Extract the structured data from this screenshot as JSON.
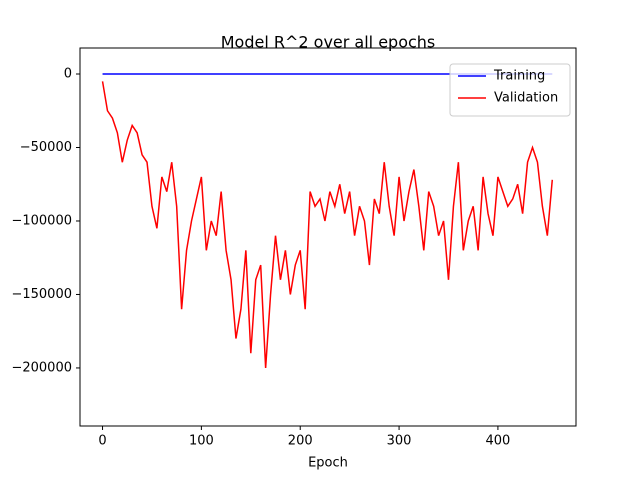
{
  "chart_data": {
    "type": "line",
    "title": "Model R^2 over all epochs",
    "x_label": "Epoch",
    "x": [
      0,
      5,
      10,
      15,
      20,
      25,
      30,
      35,
      40,
      45,
      50,
      55,
      60,
      65,
      70,
      75,
      80,
      85,
      90,
      95,
      100,
      105,
      110,
      115,
      120,
      125,
      130,
      135,
      140,
      145,
      150,
      155,
      160,
      165,
      170,
      175,
      180,
      185,
      190,
      195,
      200,
      205,
      210,
      215,
      220,
      225,
      230,
      235,
      240,
      245,
      250,
      255,
      260,
      265,
      270,
      275,
      280,
      285,
      290,
      295,
      300,
      305,
      310,
      315,
      320,
      325,
      330,
      335,
      340,
      345,
      350,
      355,
      360,
      365,
      370,
      375,
      380,
      385,
      390,
      395,
      400,
      405,
      410,
      415,
      420,
      425,
      430,
      435,
      440,
      445,
      450,
      455
    ],
    "series": [
      {
        "name": "Training",
        "color": "#0000ff",
        "values": [
          0,
          0,
          0,
          0,
          0,
          0,
          0,
          0,
          0,
          0,
          0,
          0,
          0,
          0,
          0,
          0,
          0,
          0,
          0,
          0,
          0,
          0,
          0,
          0,
          0,
          0,
          0,
          0,
          0,
          0,
          0,
          0,
          0,
          0,
          0,
          0,
          0,
          0,
          0,
          0,
          0,
          0,
          0,
          0,
          0,
          0,
          0,
          0,
          0,
          0,
          0,
          0,
          0,
          0,
          0,
          0,
          0,
          0,
          0,
          0,
          0,
          0,
          0,
          0,
          0,
          0,
          0,
          0,
          0,
          0,
          0,
          0,
          0,
          0,
          0,
          0,
          0,
          0,
          0,
          0,
          0,
          0,
          0,
          0,
          0,
          0,
          0,
          0,
          0,
          0,
          0,
          0
        ]
      },
      {
        "name": "Validation",
        "color": "#ff0000",
        "values": [
          -5000,
          -25000,
          -30000,
          -40000,
          -60000,
          -45000,
          -35000,
          -40000,
          -55000,
          -60000,
          -90000,
          -105000,
          -70000,
          -80000,
          -60000,
          -90000,
          -160000,
          -120000,
          -100000,
          -85000,
          -70000,
          -120000,
          -100000,
          -110000,
          -80000,
          -120000,
          -140000,
          -180000,
          -160000,
          -120000,
          -190000,
          -140000,
          -130000,
          -200000,
          -150000,
          -110000,
          -140000,
          -120000,
          -150000,
          -130000,
          -120000,
          -160000,
          -80000,
          -90000,
          -85000,
          -100000,
          -80000,
          -90000,
          -75000,
          -95000,
          -80000,
          -110000,
          -90000,
          -100000,
          -130000,
          -85000,
          -95000,
          -60000,
          -90000,
          -110000,
          -70000,
          -100000,
          -80000,
          -65000,
          -90000,
          -120000,
          -80000,
          -90000,
          -110000,
          -100000,
          -140000,
          -90000,
          -60000,
          -120000,
          -100000,
          -90000,
          -120000,
          -70000,
          -95000,
          -110000,
          -70000,
          -80000,
          -90000,
          -85000,
          -75000,
          -95000,
          -60000,
          -50000,
          -60000,
          -90000,
          -110000,
          -72000
        ]
      }
    ],
    "xlim": [
      -22.8,
      479
    ],
    "ylim": [
      -239500,
      17700
    ],
    "xticks": [
      0,
      100,
      200,
      300,
      400
    ],
    "yticks": [
      {
        "value": -200000,
        "label": "−200000"
      },
      {
        "value": -150000,
        "label": "−150000"
      },
      {
        "value": -100000,
        "label": "−100000"
      },
      {
        "value": -50000,
        "label": "−50000"
      },
      0
    ],
    "legend": "upper right"
  }
}
